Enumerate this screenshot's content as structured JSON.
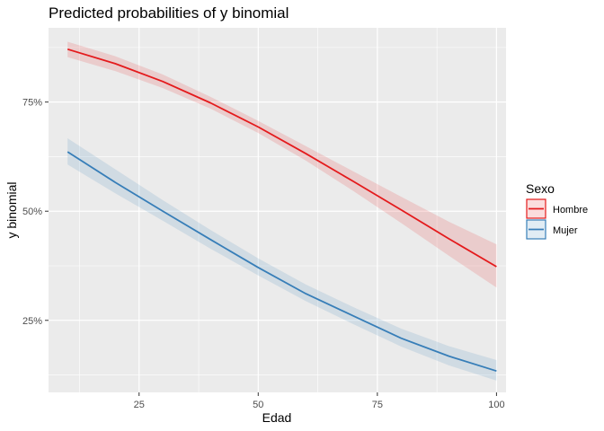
{
  "chart_data": {
    "type": "line",
    "title": "Predicted probabilities of y binomial",
    "xlabel": "Edad",
    "ylabel": "y binomial",
    "xlim": [
      6,
      102
    ],
    "ylim": [
      0.085,
      0.92
    ],
    "x_ticks": [
      25,
      50,
      75,
      100
    ],
    "x_tick_labels": [
      "25",
      "50",
      "75",
      "100"
    ],
    "y_ticks": [
      0.25,
      0.5,
      0.75
    ],
    "y_tick_labels": [
      "25%",
      "50%",
      "75%"
    ],
    "grid": true,
    "legend_position": "right",
    "legend_title": "Sexo",
    "series": [
      {
        "name": "Hombre",
        "color": "#e41a1c",
        "x": [
          10,
          20,
          30,
          40,
          50,
          60,
          70,
          80,
          90,
          100
        ],
        "y": [
          0.871,
          0.838,
          0.797,
          0.748,
          0.693,
          0.632,
          0.568,
          0.503,
          0.437,
          0.373
        ],
        "lower": [
          0.853,
          0.821,
          0.782,
          0.735,
          0.679,
          0.616,
          0.546,
          0.473,
          0.398,
          0.325
        ],
        "upper": [
          0.888,
          0.855,
          0.813,
          0.762,
          0.707,
          0.649,
          0.591,
          0.533,
          0.476,
          0.424
        ]
      },
      {
        "name": "Mujer",
        "color": "#377eb8",
        "x": [
          10,
          20,
          30,
          40,
          50,
          60,
          70,
          80,
          90,
          100
        ],
        "y": [
          0.636,
          0.566,
          0.5,
          0.435,
          0.371,
          0.311,
          0.26,
          0.209,
          0.168,
          0.134
        ],
        "lower": [
          0.607,
          0.541,
          0.478,
          0.414,
          0.353,
          0.294,
          0.241,
          0.19,
          0.147,
          0.112
        ],
        "upper": [
          0.667,
          0.596,
          0.525,
          0.457,
          0.392,
          0.332,
          0.28,
          0.231,
          0.191,
          0.159
        ]
      }
    ]
  }
}
